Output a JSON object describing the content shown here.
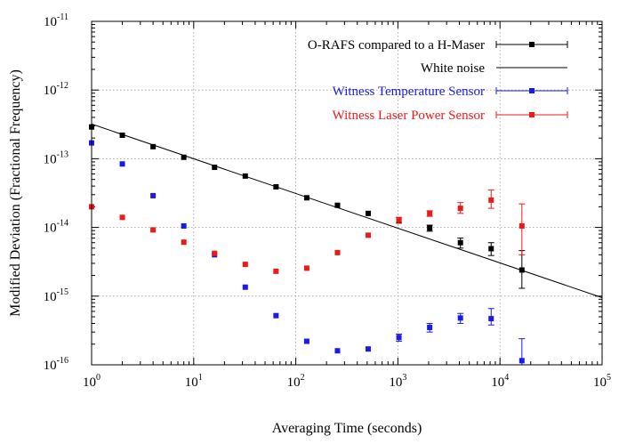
{
  "chart_data": {
    "type": "scatter",
    "xscale": "log",
    "yscale": "log",
    "xlim": [
      1,
      100000
    ],
    "ylim": [
      1e-16,
      1e-11
    ],
    "grid": true,
    "legend_position": "top-right",
    "xlabel": "Averaging Time (seconds)",
    "ylabel": "Modified Deviation (Fractional Frequency)",
    "x_ticks": [
      {
        "value": 1,
        "base": "10",
        "exp": "0"
      },
      {
        "value": 10,
        "base": "10",
        "exp": "1"
      },
      {
        "value": 100,
        "base": "10",
        "exp": "2"
      },
      {
        "value": 1000,
        "base": "10",
        "exp": "3"
      },
      {
        "value": 10000,
        "base": "10",
        "exp": "4"
      },
      {
        "value": 100000,
        "base": "10",
        "exp": "5"
      }
    ],
    "y_ticks": [
      {
        "value": 1e-16,
        "base": "10",
        "exp": "-16"
      },
      {
        "value": 1e-15,
        "base": "10",
        "exp": "-15"
      },
      {
        "value": 1e-14,
        "base": "10",
        "exp": "-14"
      },
      {
        "value": 1e-13,
        "base": "10",
        "exp": "-13"
      },
      {
        "value": 1e-12,
        "base": "10",
        "exp": "-12"
      },
      {
        "value": 1e-11,
        "base": "10",
        "exp": "-11"
      }
    ],
    "series": [
      {
        "name": "O-RAFS compared to a H-Maser",
        "kind": "points_errorbars",
        "color": "#000000",
        "x": [
          1,
          2,
          4,
          8,
          16,
          32,
          64,
          128,
          256,
          512,
          1024,
          2048,
          4096,
          8192,
          16384
        ],
        "y": [
          2.9e-13,
          2.2e-13,
          1.5e-13,
          1.05e-13,
          7.5e-14,
          5.6e-14,
          3.9e-14,
          2.7e-14,
          2.1e-14,
          1.6e-14,
          1.25e-14,
          9.8e-15,
          6e-15,
          4.9e-15,
          2.4e-15
        ],
        "y_low": [
          null,
          null,
          null,
          null,
          null,
          null,
          null,
          null,
          null,
          null,
          null,
          8.8e-15,
          5e-15,
          3.9e-15,
          1.3e-15
        ],
        "y_high": [
          null,
          null,
          null,
          null,
          null,
          null,
          null,
          null,
          null,
          null,
          null,
          1.08e-14,
          7e-15,
          6e-15,
          4.6e-15
        ]
      },
      {
        "name": "White noise",
        "kind": "line",
        "color": "#000000",
        "x": [
          1,
          100000
        ],
        "y": [
          3.2e-13,
          9.5e-16
        ]
      },
      {
        "name": "Witness Temperature Sensor",
        "kind": "points_errorbars",
        "color": "#1a1aee",
        "x": [
          1,
          2,
          4,
          8,
          16,
          32,
          64,
          128,
          256,
          512,
          1024,
          2048,
          4096,
          8192,
          16384
        ],
        "y": [
          1.7e-13,
          8.4e-14,
          2.9e-14,
          1.05e-14,
          4e-15,
          1.35e-15,
          5.2e-16,
          2.2e-16,
          1.6e-16,
          1.7e-16,
          2.5e-16,
          3.5e-16,
          4.8e-16,
          4.7e-16,
          1.15e-16
        ],
        "y_low": [
          null,
          null,
          null,
          null,
          null,
          null,
          null,
          null,
          null,
          null,
          2.2e-16,
          3e-16,
          4e-16,
          3.8e-16,
          1e-16
        ],
        "y_high": [
          null,
          null,
          null,
          null,
          null,
          null,
          null,
          null,
          null,
          null,
          2.8e-16,
          4e-16,
          5.6e-16,
          6.6e-16,
          2.4e-16
        ]
      },
      {
        "name": "Witness Laser Power Sensor",
        "kind": "points_errorbars",
        "color": "#ee1a1a",
        "x": [
          1,
          2,
          4,
          8,
          16,
          32,
          64,
          128,
          256,
          512,
          1024,
          2048,
          4096,
          8192,
          16384
        ],
        "y": [
          2e-14,
          1.4e-14,
          9.2e-15,
          6.1e-15,
          4.2e-15,
          2.9e-15,
          2.3e-15,
          2.55e-15,
          4.3e-15,
          7.7e-15,
          1.3e-14,
          1.6e-14,
          1.9e-14,
          2.5e-14,
          1.05e-14
        ],
        "y_low": [
          null,
          null,
          null,
          null,
          null,
          null,
          null,
          null,
          null,
          null,
          1.15e-14,
          1.45e-14,
          1.6e-14,
          1.9e-14,
          4e-15
        ],
        "y_high": [
          null,
          null,
          null,
          null,
          null,
          null,
          null,
          null,
          null,
          null,
          1.4e-14,
          1.75e-14,
          2.3e-14,
          3.5e-14,
          2.2e-14
        ]
      }
    ]
  }
}
